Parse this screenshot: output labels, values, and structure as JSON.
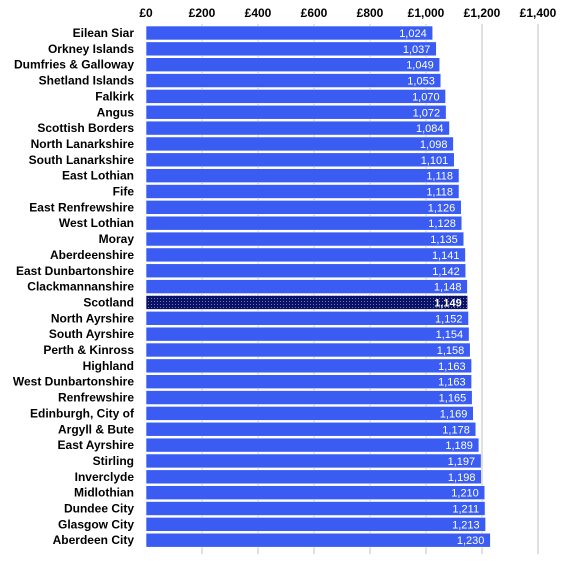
{
  "chart_data": {
    "type": "bar",
    "orientation": "horizontal",
    "title": "",
    "xlabel": "",
    "ylabel": "",
    "xlim": [
      0,
      1400
    ],
    "x_ticks": [
      0,
      200,
      400,
      600,
      800,
      1000,
      1200,
      1400
    ],
    "x_tick_labels": [
      "£0",
      "£200",
      "£400",
      "£600",
      "£800",
      "£1,000",
      "£1,200",
      "£1,400"
    ],
    "grid": true,
    "legend": "none",
    "categories": [
      "Eilean Siar",
      "Orkney Islands",
      "Dumfries & Galloway",
      "Shetland Islands",
      "Falkirk",
      "Angus",
      "Scottish Borders",
      "North Lanarkshire",
      "South Lanarkshire",
      "East Lothian",
      "Fife",
      "East Renfrewshire",
      "West Lothian",
      "Moray",
      "Aberdeenshire",
      "East Dunbartonshire",
      "Clackmannanshire",
      "Scotland",
      "North Ayrshire",
      "South Ayrshire",
      "Perth & Kinross",
      "Highland",
      "West Dunbartonshire",
      "Renfrewshire",
      "Edinburgh, City of",
      "Argyll & Bute",
      "East Ayrshire",
      "Stirling",
      "Inverclyde",
      "Midlothian",
      "Dundee City",
      "Glasgow City",
      "Aberdeen City"
    ],
    "values": [
      1024,
      1037,
      1049,
      1053,
      1070,
      1072,
      1084,
      1098,
      1101,
      1118,
      1118,
      1126,
      1128,
      1135,
      1141,
      1142,
      1148,
      1149,
      1152,
      1154,
      1158,
      1163,
      1163,
      1165,
      1169,
      1178,
      1189,
      1197,
      1198,
      1210,
      1211,
      1213,
      1230
    ],
    "value_labels": [
      "1,024",
      "1,037",
      "1,049",
      "1,053",
      "1,070",
      "1,072",
      "1,084",
      "1,098",
      "1,101",
      "1,118",
      "1,118",
      "1,126",
      "1,128",
      "1,135",
      "1,141",
      "1,142",
      "1,148",
      "1,149",
      "1,152",
      "1,154",
      "1,158",
      "1,163",
      "1,163",
      "1,165",
      "1,169",
      "1,178",
      "1,189",
      "1,197",
      "1,198",
      "1,210",
      "1,211",
      "1,213",
      "1,230"
    ],
    "highlight_category": "Scotland",
    "colors": {
      "bar": "#3a5cf2",
      "highlight": "#0a1266",
      "bar_edge": "#ffffff",
      "grid": "#c0c0c0",
      "text": "#000000"
    }
  }
}
